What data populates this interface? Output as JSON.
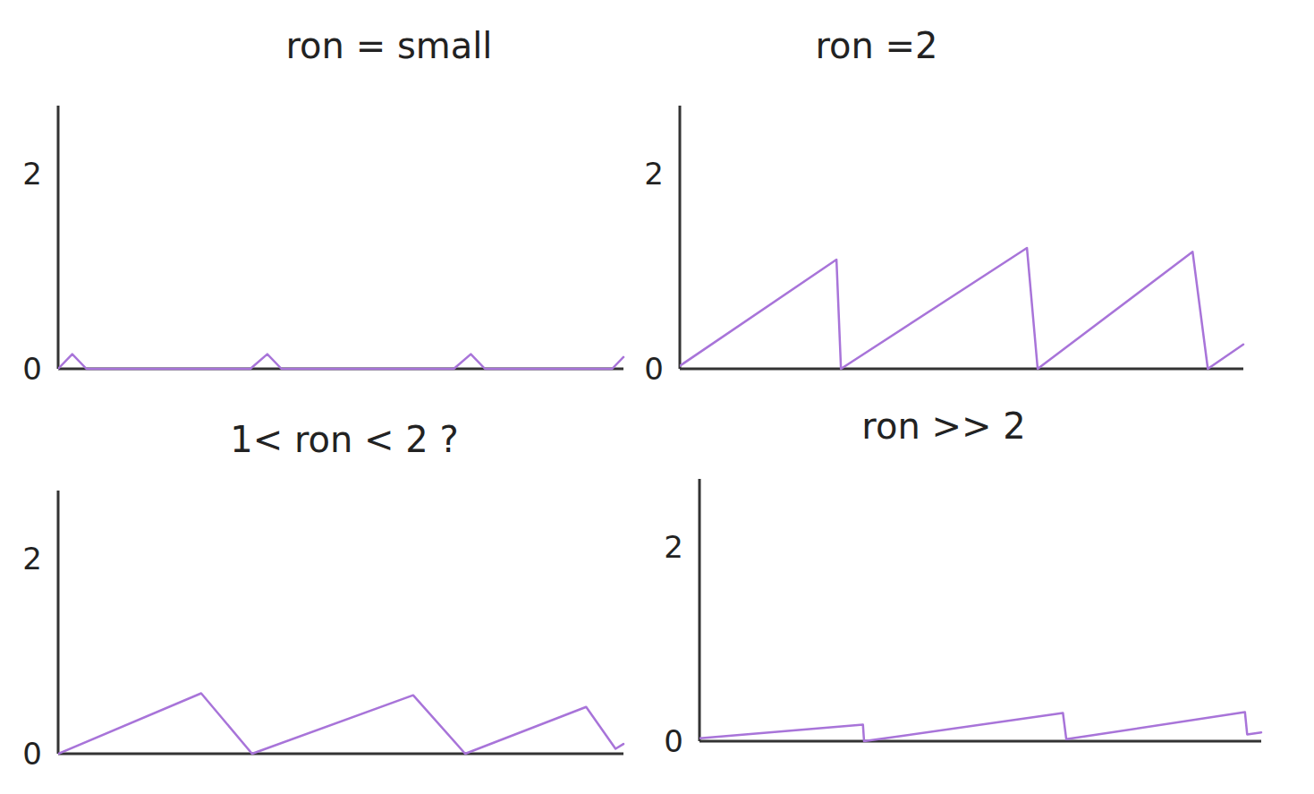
{
  "chart_data": [
    {
      "type": "line",
      "title": "ron = small",
      "color": "#a874d9",
      "x": [
        0,
        0.25,
        0.5,
        3.4,
        3.7,
        3.95,
        7.0,
        7.3,
        7.55,
        9.8,
        10
      ],
      "values": [
        0,
        0.15,
        0,
        0,
        0.15,
        0,
        0,
        0.15,
        0,
        0,
        0.12
      ],
      "xlim": [
        0,
        10
      ],
      "ylim": [
        0,
        2.7
      ],
      "yticks": [
        0,
        2
      ],
      "tick_labels": "y"
    },
    {
      "type": "line",
      "title": "ron =2",
      "color": "#a874d9",
      "x": [
        0,
        2.78,
        2.86,
        6.16,
        6.35,
        9.1,
        9.37,
        10
      ],
      "values": [
        0.03,
        1.12,
        0,
        1.24,
        0,
        1.2,
        0,
        0.25
      ],
      "xlim": [
        0,
        10
      ],
      "ylim": [
        0,
        2.7
      ],
      "yticks": [
        0,
        2
      ],
      "tick_labels": "y"
    },
    {
      "type": "line",
      "title": "1< ron < 2 ?",
      "color": "#a874d9",
      "x": [
        0,
        2.53,
        3.43,
        6.28,
        7.2,
        9.34,
        9.86,
        10
      ],
      "values": [
        0,
        0.62,
        0,
        0.6,
        0,
        0.48,
        0.05,
        0.1
      ],
      "xlim": [
        0,
        10
      ],
      "ylim": [
        0,
        2.7
      ],
      "yticks": [
        0,
        2
      ],
      "tick_labels": "y"
    },
    {
      "type": "line",
      "title": "ron >> 2",
      "color": "#a874d9",
      "x": [
        0,
        2.91,
        2.93,
        6.47,
        6.53,
        9.71,
        9.75,
        10
      ],
      "values": [
        0.03,
        0.17,
        0,
        0.29,
        0.02,
        0.3,
        0.07,
        0.09
      ],
      "xlim": [
        0,
        10
      ],
      "ylim": [
        0,
        2.7
      ],
      "yticks": [
        0,
        2
      ],
      "tick_labels": "y"
    }
  ]
}
